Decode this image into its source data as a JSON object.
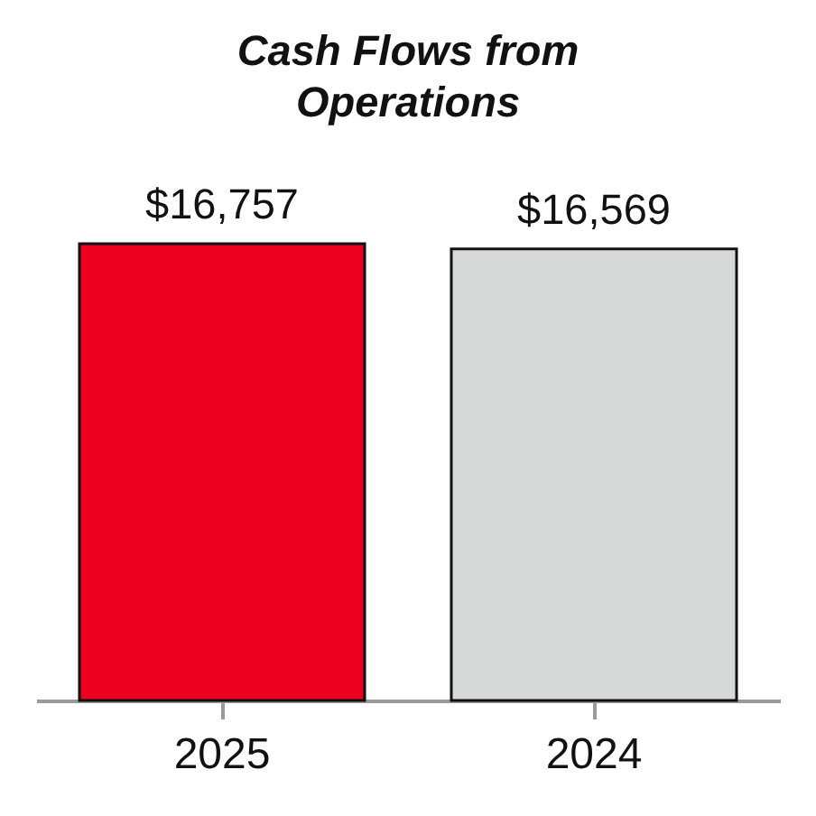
{
  "chart_data": {
    "type": "bar",
    "title": "Cash Flows from Operations",
    "categories": [
      "2025",
      "2024"
    ],
    "values": [
      16757,
      16569
    ],
    "colors": [
      "#ec0020",
      "#d8dad9"
    ],
    "value_labels": [
      "$16,757",
      "$16,569"
    ]
  }
}
